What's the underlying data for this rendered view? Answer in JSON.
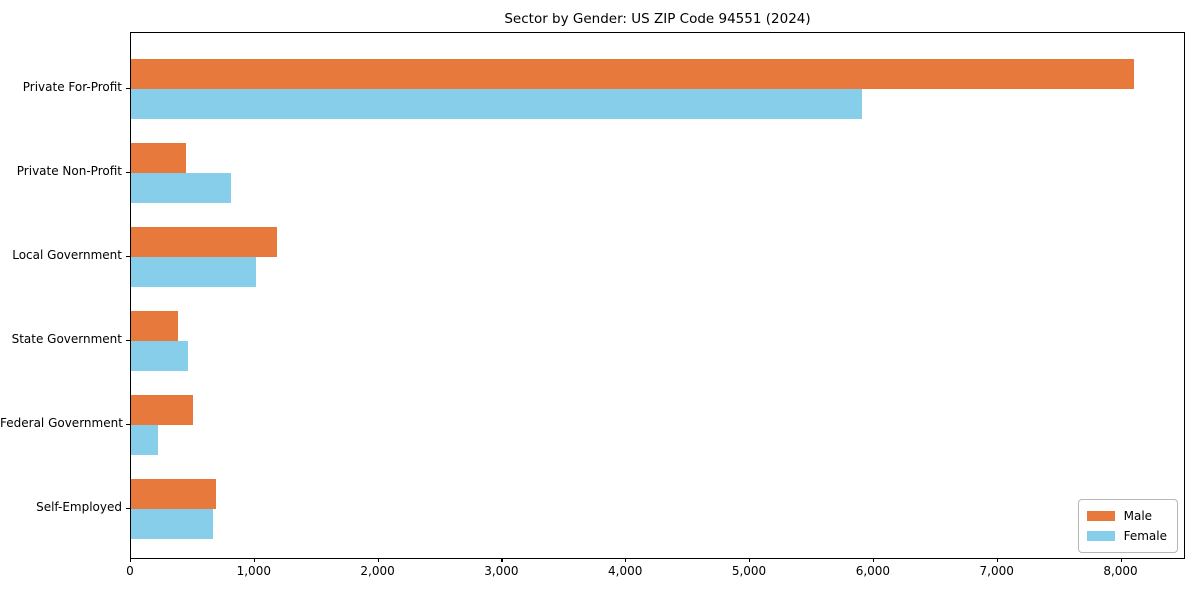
{
  "chart_data": {
    "type": "bar",
    "orientation": "horizontal",
    "title": "Sector by Gender: US ZIP Code 94551 (2024)",
    "xlabel": "",
    "ylabel": "",
    "categories": [
      "Private For-Profit",
      "Private Non-Profit",
      "Local Government",
      "State Government",
      "Federal Government",
      "Self-Employed"
    ],
    "series": [
      {
        "name": "Male",
        "color": "#e8793c",
        "values": [
          8100,
          440,
          1180,
          380,
          500,
          690
        ]
      },
      {
        "name": "Female",
        "color": "#87ceeb",
        "values": [
          5900,
          810,
          1010,
          460,
          220,
          665
        ]
      }
    ],
    "xlim": [
      0,
      8505
    ],
    "x_ticks": [
      0,
      1000,
      2000,
      3000,
      4000,
      5000,
      6000,
      7000,
      8000
    ],
    "x_tick_labels": [
      "0",
      "1,000",
      "2,000",
      "3,000",
      "4,000",
      "5,000",
      "6,000",
      "7,000",
      "8,000"
    ],
    "grid": false,
    "legend": {
      "position": "lower right",
      "entries": [
        "Male",
        "Female"
      ]
    }
  },
  "colors": {
    "axis": "#000000",
    "text": "#000000",
    "background": "#ffffff",
    "legend_border": "#b7b7b7"
  }
}
